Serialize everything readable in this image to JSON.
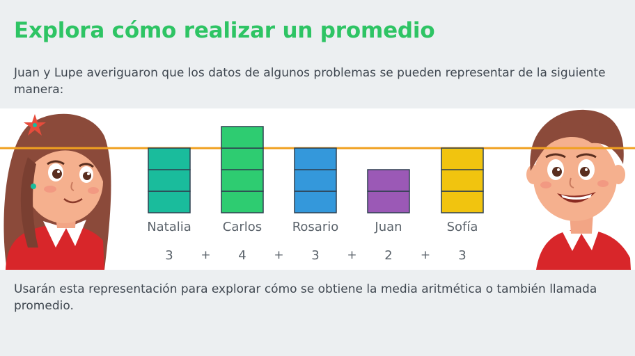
{
  "title": "Explora cómo realizar un promedio",
  "intro": "Juan y Lupe averiguaron que los datos de algunos problemas se pueden representar de la siguiente manera:",
  "outro": "Usarán esta representación para explorar cómo se obtiene la media aritmética o también llamada promedio.",
  "colors": {
    "title": "#2ec464",
    "average_line": "#f0a020",
    "natalia": "#1abc9c",
    "carlos": "#2ecc71",
    "rosario": "#3498db",
    "juan": "#9b59b6",
    "sofia": "#f1c40f"
  },
  "illustrations": [
    "girl-character",
    "boy-character"
  ],
  "chart_data": {
    "type": "bar",
    "categories": [
      "Natalia",
      "Carlos",
      "Rosario",
      "Juan",
      "Sofía"
    ],
    "values": [
      3,
      4,
      3,
      2,
      3
    ],
    "value_labels": [
      "3",
      "4",
      "3",
      "2",
      "3"
    ],
    "operator": "+",
    "reference_line": 3
  }
}
